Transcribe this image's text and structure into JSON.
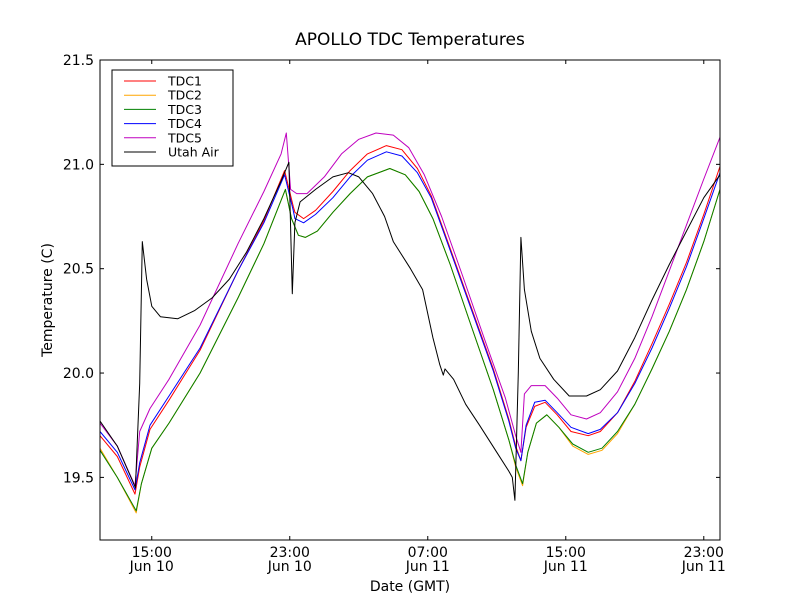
{
  "chart_data": {
    "type": "line",
    "title": "APOLLO TDC Temperatures",
    "xlabel": "Date (GMT)",
    "ylabel": "Temperature (C)",
    "x_units": "hours since 12:00 Jun 10",
    "xlim": [
      0,
      35.94
    ],
    "ylim": [
      19.2,
      21.5
    ],
    "grid": false,
    "legend_position": "top-left",
    "xticks": [
      {
        "value": 3,
        "time": "15:00",
        "date": "Jun 10"
      },
      {
        "value": 11,
        "time": "23:00",
        "date": "Jun 10"
      },
      {
        "value": 19,
        "time": "07:00",
        "date": "Jun 11"
      },
      {
        "value": 27,
        "time": "15:00",
        "date": "Jun 11"
      },
      {
        "value": 35,
        "time": "23:00",
        "date": "Jun 11"
      }
    ],
    "yticks": [
      {
        "value": 19.5,
        "label": "19.5"
      },
      {
        "value": 20.0,
        "label": "20.0"
      },
      {
        "value": 20.5,
        "label": "20.5"
      },
      {
        "value": 21.0,
        "label": "21.0"
      },
      {
        "value": 21.5,
        "label": "21.5"
      }
    ],
    "series": [
      {
        "name": "TDC1",
        "color": "#ff0000",
        "points": [
          [
            0,
            19.7
          ],
          [
            1,
            19.6
          ],
          [
            2.03,
            19.42
          ],
          [
            2.3,
            19.55
          ],
          [
            2.9,
            19.73
          ],
          [
            4,
            19.87
          ],
          [
            5.8,
            20.11
          ],
          [
            8,
            20.49
          ],
          [
            9.5,
            20.73
          ],
          [
            10.7,
            20.97
          ],
          [
            11.2,
            20.8
          ],
          [
            11.3,
            20.77
          ],
          [
            11.8,
            20.74
          ],
          [
            12.5,
            20.78
          ],
          [
            13.5,
            20.87
          ],
          [
            14.5,
            20.97
          ],
          [
            15.5,
            21.05
          ],
          [
            16.6,
            21.09
          ],
          [
            17.5,
            21.07
          ],
          [
            18.4,
            20.98
          ],
          [
            19.2,
            20.85
          ],
          [
            20.2,
            20.62
          ],
          [
            21.5,
            20.32
          ],
          [
            22.8,
            20.02
          ],
          [
            23.7,
            19.78
          ],
          [
            24.1,
            19.65
          ],
          [
            24.4,
            19.58
          ],
          [
            24.7,
            19.74
          ],
          [
            25.2,
            19.84
          ],
          [
            25.8,
            19.86
          ],
          [
            26.5,
            19.8
          ],
          [
            27.3,
            19.72
          ],
          [
            28.3,
            19.7
          ],
          [
            29,
            19.72
          ],
          [
            30,
            19.81
          ],
          [
            31,
            19.96
          ],
          [
            32,
            20.14
          ],
          [
            33,
            20.33
          ],
          [
            34,
            20.53
          ],
          [
            35,
            20.76
          ],
          [
            35.94,
            20.99
          ]
        ]
      },
      {
        "name": "TDC2",
        "color": "#ffa500",
        "points": [
          [
            0,
            19.64
          ],
          [
            1,
            19.5
          ],
          [
            2.1,
            19.33
          ],
          [
            2.4,
            19.47
          ],
          [
            3,
            19.64
          ],
          [
            4,
            19.76
          ],
          [
            5.8,
            20.0
          ],
          [
            8,
            20.36
          ],
          [
            9.5,
            20.62
          ],
          [
            10.75,
            20.88
          ],
          [
            11.1,
            20.74
          ],
          [
            11.5,
            20.66
          ],
          [
            11.9,
            20.65
          ],
          [
            12.6,
            20.68
          ],
          [
            13.5,
            20.77
          ],
          [
            14.5,
            20.86
          ],
          [
            15.5,
            20.94
          ],
          [
            16.8,
            20.98
          ],
          [
            17.7,
            20.95
          ],
          [
            18.5,
            20.87
          ],
          [
            19.3,
            20.74
          ],
          [
            20.3,
            20.52
          ],
          [
            21.5,
            20.23
          ],
          [
            22.8,
            19.92
          ],
          [
            23.7,
            19.68
          ],
          [
            24.1,
            19.55
          ],
          [
            24.5,
            19.46
          ],
          [
            24.8,
            19.62
          ],
          [
            25.3,
            19.76
          ],
          [
            25.9,
            19.8
          ],
          [
            26.6,
            19.74
          ],
          [
            27.4,
            19.65
          ],
          [
            28.3,
            19.61
          ],
          [
            29.1,
            19.63
          ],
          [
            30,
            19.71
          ],
          [
            31,
            19.85
          ],
          [
            32,
            20.02
          ],
          [
            33,
            20.2
          ],
          [
            34,
            20.4
          ],
          [
            35,
            20.63
          ],
          [
            35.94,
            20.88
          ]
        ]
      },
      {
        "name": "TDC3",
        "color": "#008000",
        "points": [
          [
            0,
            19.63
          ],
          [
            1,
            19.5
          ],
          [
            2.1,
            19.34
          ],
          [
            2.4,
            19.47
          ],
          [
            3,
            19.64
          ],
          [
            4,
            19.76
          ],
          [
            5.8,
            20.0
          ],
          [
            8,
            20.36
          ],
          [
            9.5,
            20.62
          ],
          [
            10.75,
            20.88
          ],
          [
            11.1,
            20.74
          ],
          [
            11.5,
            20.66
          ],
          [
            11.9,
            20.65
          ],
          [
            12.6,
            20.68
          ],
          [
            13.5,
            20.77
          ],
          [
            14.5,
            20.86
          ],
          [
            15.5,
            20.94
          ],
          [
            16.8,
            20.98
          ],
          [
            17.7,
            20.95
          ],
          [
            18.5,
            20.87
          ],
          [
            19.3,
            20.74
          ],
          [
            20.3,
            20.52
          ],
          [
            21.5,
            20.23
          ],
          [
            22.8,
            19.92
          ],
          [
            23.7,
            19.68
          ],
          [
            24.1,
            19.56
          ],
          [
            24.5,
            19.47
          ],
          [
            24.8,
            19.62
          ],
          [
            25.3,
            19.76
          ],
          [
            25.9,
            19.8
          ],
          [
            26.6,
            19.74
          ],
          [
            27.4,
            19.66
          ],
          [
            28.3,
            19.62
          ],
          [
            29.1,
            19.64
          ],
          [
            30,
            19.72
          ],
          [
            31,
            19.85
          ],
          [
            32,
            20.02
          ],
          [
            33,
            20.2
          ],
          [
            34,
            20.4
          ],
          [
            35,
            20.63
          ],
          [
            35.94,
            20.88
          ]
        ]
      },
      {
        "name": "TDC4",
        "color": "#0000ff",
        "points": [
          [
            0,
            19.72
          ],
          [
            1,
            19.62
          ],
          [
            2.03,
            19.44
          ],
          [
            2.3,
            19.57
          ],
          [
            2.9,
            19.75
          ],
          [
            4,
            19.89
          ],
          [
            5.8,
            20.12
          ],
          [
            8,
            20.49
          ],
          [
            9.5,
            20.72
          ],
          [
            10.7,
            20.95
          ],
          [
            11.2,
            20.78
          ],
          [
            11.3,
            20.74
          ],
          [
            11.8,
            20.72
          ],
          [
            12.5,
            20.76
          ],
          [
            13.5,
            20.84
          ],
          [
            14.5,
            20.94
          ],
          [
            15.5,
            21.02
          ],
          [
            16.6,
            21.06
          ],
          [
            17.5,
            21.04
          ],
          [
            18.4,
            20.96
          ],
          [
            19.2,
            20.84
          ],
          [
            20.2,
            20.61
          ],
          [
            21.5,
            20.31
          ],
          [
            22.8,
            20.01
          ],
          [
            23.7,
            19.77
          ],
          [
            24.1,
            19.64
          ],
          [
            24.4,
            19.58
          ],
          [
            24.7,
            19.75
          ],
          [
            25.2,
            19.86
          ],
          [
            25.8,
            19.87
          ],
          [
            26.5,
            19.81
          ],
          [
            27.3,
            19.74
          ],
          [
            28.3,
            19.71
          ],
          [
            29,
            19.73
          ],
          [
            30,
            19.81
          ],
          [
            31,
            19.95
          ],
          [
            32,
            20.12
          ],
          [
            33,
            20.31
          ],
          [
            34,
            20.51
          ],
          [
            35,
            20.74
          ],
          [
            35.94,
            20.96
          ]
        ]
      },
      {
        "name": "TDC5",
        "color": "#bf00bf",
        "points": [
          [
            0,
            19.76
          ],
          [
            1,
            19.65
          ],
          [
            2.03,
            19.46
          ],
          [
            2.3,
            19.72
          ],
          [
            2.9,
            19.83
          ],
          [
            4,
            19.97
          ],
          [
            5.8,
            20.23
          ],
          [
            8,
            20.62
          ],
          [
            9.5,
            20.87
          ],
          [
            10.5,
            21.05
          ],
          [
            10.8,
            21.15
          ],
          [
            11.05,
            20.88
          ],
          [
            11.4,
            20.86
          ],
          [
            12,
            20.86
          ],
          [
            13,
            20.94
          ],
          [
            14,
            21.05
          ],
          [
            15,
            21.12
          ],
          [
            16,
            21.15
          ],
          [
            17,
            21.14
          ],
          [
            17.9,
            21.08
          ],
          [
            18.8,
            20.95
          ],
          [
            19.8,
            20.75
          ],
          [
            21,
            20.47
          ],
          [
            22.3,
            20.16
          ],
          [
            23.5,
            19.88
          ],
          [
            24.1,
            19.7
          ],
          [
            24.4,
            19.62
          ],
          [
            24.6,
            19.9
          ],
          [
            25,
            19.94
          ],
          [
            25.8,
            19.94
          ],
          [
            26.5,
            19.88
          ],
          [
            27.3,
            19.8
          ],
          [
            28.2,
            19.78
          ],
          [
            29,
            19.81
          ],
          [
            30,
            19.91
          ],
          [
            31,
            20.07
          ],
          [
            32,
            20.27
          ],
          [
            33,
            20.49
          ],
          [
            34,
            20.71
          ],
          [
            35,
            20.93
          ],
          [
            35.94,
            21.13
          ]
        ]
      },
      {
        "name": "Utah Air",
        "color": "#000000",
        "points": [
          [
            0,
            19.77
          ],
          [
            1,
            19.65
          ],
          [
            1.9,
            19.48
          ],
          [
            2.05,
            19.45
          ],
          [
            2.3,
            19.95
          ],
          [
            2.45,
            20.63
          ],
          [
            2.7,
            20.45
          ],
          [
            3,
            20.32
          ],
          [
            3.5,
            20.27
          ],
          [
            4.5,
            20.26
          ],
          [
            5.5,
            20.3
          ],
          [
            6.5,
            20.36
          ],
          [
            7.5,
            20.45
          ],
          [
            8.5,
            20.58
          ],
          [
            9.5,
            20.74
          ],
          [
            10.5,
            20.92
          ],
          [
            10.95,
            21.01
          ],
          [
            11.05,
            20.7
          ],
          [
            11.15,
            20.38
          ],
          [
            11.3,
            20.72
          ],
          [
            11.6,
            20.82
          ],
          [
            12.5,
            20.88
          ],
          [
            13.5,
            20.94
          ],
          [
            14.4,
            20.96
          ],
          [
            15,
            20.94
          ],
          [
            15.8,
            20.86
          ],
          [
            16.5,
            20.75
          ],
          [
            17,
            20.63
          ],
          [
            18,
            20.5
          ],
          [
            18.7,
            20.4
          ],
          [
            19.3,
            20.17
          ],
          [
            19.7,
            20.04
          ],
          [
            19.9,
            19.99
          ],
          [
            20,
            20.02
          ],
          [
            20.5,
            19.97
          ],
          [
            21.2,
            19.85
          ],
          [
            22,
            19.75
          ],
          [
            23,
            19.62
          ],
          [
            23.7,
            19.53
          ],
          [
            23.9,
            19.5
          ],
          [
            24.05,
            19.39
          ],
          [
            24.25,
            20.0
          ],
          [
            24.4,
            20.65
          ],
          [
            24.6,
            20.4
          ],
          [
            25,
            20.2
          ],
          [
            25.5,
            20.07
          ],
          [
            26.3,
            19.97
          ],
          [
            27.2,
            19.89
          ],
          [
            28.2,
            19.89
          ],
          [
            29,
            19.92
          ],
          [
            30,
            20.01
          ],
          [
            31,
            20.17
          ],
          [
            32,
            20.35
          ],
          [
            33,
            20.52
          ],
          [
            34,
            20.68
          ],
          [
            35,
            20.84
          ],
          [
            35.94,
            20.95
          ]
        ]
      }
    ]
  }
}
